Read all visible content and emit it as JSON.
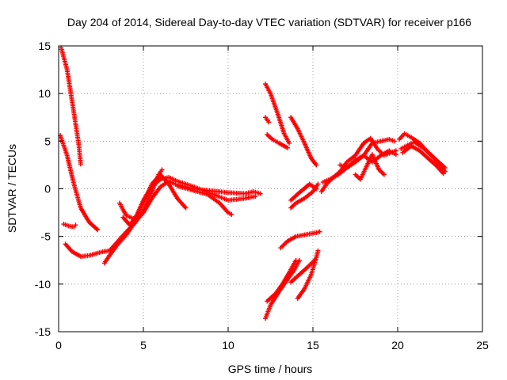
{
  "chart_data": {
    "type": "scatter",
    "title": "Day 204 of 2014, Sidereal Day-to-day VTEC variation (SDTVAR) for receiver p166",
    "xlabel": "GPS time / hours",
    "ylabel": "SDTVAR / TECUs",
    "xlim": [
      0,
      25
    ],
    "ylim": [
      -15,
      15
    ],
    "xticks": [
      0,
      5,
      10,
      15,
      20,
      25
    ],
    "yticks": [
      -15,
      -10,
      -5,
      0,
      5,
      10,
      15
    ],
    "grid": true,
    "marker": "plus",
    "color": "#ff0000",
    "segments": [
      [
        [
          0.15,
          14.8
        ],
        [
          0.5,
          12.5
        ],
        [
          0.9,
          8.0
        ],
        [
          1.2,
          4.5
        ],
        [
          1.3,
          2.6
        ]
      ],
      [
        [
          0.1,
          5.6
        ],
        [
          0.5,
          3.5
        ],
        [
          0.9,
          0.5
        ],
        [
          1.3,
          -2.0
        ],
        [
          1.8,
          -3.5
        ],
        [
          2.3,
          -4.3
        ]
      ],
      [
        [
          0.3,
          -3.7
        ],
        [
          0.6,
          -3.9
        ],
        [
          0.9,
          -4.0
        ],
        [
          1.0,
          -3.8
        ]
      ],
      [
        [
          0.4,
          -5.8
        ],
        [
          0.8,
          -6.6
        ],
        [
          1.3,
          -7.1
        ],
        [
          1.8,
          -7.0
        ],
        [
          2.2,
          -6.8
        ],
        [
          2.6,
          -6.6
        ],
        [
          3.0,
          -6.5
        ],
        [
          3.5,
          -5.5
        ],
        [
          4.0,
          -4.5
        ],
        [
          4.5,
          -3.6
        ],
        [
          5.0,
          -2.2
        ],
        [
          5.5,
          -0.3
        ],
        [
          5.9,
          1.5
        ],
        [
          6.1,
          2.0
        ]
      ],
      [
        [
          2.7,
          -7.8
        ],
        [
          3.0,
          -7.0
        ],
        [
          3.5,
          -5.8
        ],
        [
          4.0,
          -4.8
        ],
        [
          4.5,
          -3.5
        ],
        [
          5.0,
          -2.5
        ],
        [
          5.5,
          -1.0
        ],
        [
          6.0,
          0.2
        ],
        [
          6.5,
          0.8
        ],
        [
          7.0,
          0.4
        ],
        [
          8.0,
          0.0
        ],
        [
          9.0,
          -0.2
        ],
        [
          10.0,
          -0.4
        ],
        [
          11.0,
          -0.5
        ],
        [
          11.5,
          -0.3
        ],
        [
          11.9,
          -0.5
        ]
      ],
      [
        [
          3.6,
          -1.5
        ],
        [
          3.8,
          -2.2
        ],
        [
          4.0,
          -2.8
        ],
        [
          4.5,
          -3.2
        ],
        [
          5.0,
          -1.5
        ],
        [
          5.5,
          0.5
        ],
        [
          6.0,
          1.5
        ],
        [
          6.5,
          0.5
        ],
        [
          7.0,
          -1.0
        ],
        [
          7.5,
          -2.0
        ]
      ],
      [
        [
          3.8,
          -3.0
        ],
        [
          4.2,
          -3.8
        ],
        [
          4.6,
          -2.8
        ],
        [
          5.0,
          -1.2
        ],
        [
          5.5,
          0.3
        ],
        [
          6.0,
          1.0
        ],
        [
          6.5,
          1.2
        ],
        [
          7.0,
          0.8
        ],
        [
          8.0,
          0.2
        ],
        [
          9.0,
          -0.5
        ],
        [
          10.0,
          -1.2
        ],
        [
          11.0,
          -1.0
        ],
        [
          11.6,
          -0.8
        ]
      ],
      [
        [
          7.0,
          0.3
        ],
        [
          8.0,
          -0.2
        ],
        [
          8.8,
          -0.6
        ],
        [
          9.5,
          -1.5
        ],
        [
          10.0,
          -2.5
        ],
        [
          10.2,
          -2.7
        ]
      ],
      [
        [
          12.2,
          11.0
        ],
        [
          12.5,
          10.0
        ],
        [
          12.9,
          8.0
        ],
        [
          13.3,
          5.8
        ],
        [
          13.6,
          4.8
        ]
      ],
      [
        [
          12.2,
          7.5
        ],
        [
          12.4,
          7.0
        ]
      ],
      [
        [
          12.3,
          5.7
        ],
        [
          12.6,
          5.2
        ],
        [
          13.0,
          4.8
        ],
        [
          13.5,
          4.3
        ]
      ],
      [
        [
          13.7,
          7.5
        ],
        [
          14.1,
          6.3
        ],
        [
          14.5,
          4.8
        ],
        [
          14.9,
          3.2
        ],
        [
          15.2,
          2.5
        ]
      ],
      [
        [
          12.2,
          -13.6
        ],
        [
          12.5,
          -12.2
        ],
        [
          13.0,
          -10.8
        ],
        [
          13.5,
          -9.5
        ],
        [
          13.9,
          -8.5
        ],
        [
          14.2,
          -7.5
        ]
      ],
      [
        [
          12.3,
          -11.8
        ],
        [
          12.8,
          -11.0
        ],
        [
          13.2,
          -10.0
        ],
        [
          13.6,
          -8.8
        ],
        [
          14.0,
          -7.5
        ]
      ],
      [
        [
          14.1,
          -11.5
        ],
        [
          14.5,
          -10.5
        ],
        [
          14.9,
          -9.0
        ],
        [
          15.2,
          -7.2
        ],
        [
          15.3,
          -6.5
        ]
      ],
      [
        [
          13.7,
          -9.8
        ],
        [
          14.2,
          -9.0
        ],
        [
          14.7,
          -8.2
        ],
        [
          15.1,
          -7.5
        ]
      ],
      [
        [
          13.1,
          -6.2
        ],
        [
          13.5,
          -5.5
        ],
        [
          14.0,
          -5.0
        ],
        [
          14.6,
          -4.8
        ],
        [
          15.2,
          -4.6
        ],
        [
          15.4,
          -4.5
        ]
      ],
      [
        [
          13.7,
          -2.0
        ],
        [
          14.0,
          -1.5
        ],
        [
          14.5,
          -1.0
        ],
        [
          15.0,
          -0.3
        ],
        [
          15.3,
          0.5
        ]
      ],
      [
        [
          13.7,
          -1.2
        ],
        [
          14.2,
          -0.4
        ],
        [
          14.8,
          0.5
        ],
        [
          15.2,
          0.0
        ]
      ],
      [
        [
          15.5,
          -0.3
        ],
        [
          15.8,
          0.5
        ],
        [
          16.2,
          1.2
        ],
        [
          16.6,
          1.8
        ],
        [
          17.0,
          2.8
        ],
        [
          17.5,
          3.5
        ],
        [
          18.0,
          4.8
        ],
        [
          18.4,
          5.3
        ],
        [
          18.8,
          4.2
        ],
        [
          19.2,
          3.5
        ],
        [
          19.6,
          3.8
        ],
        [
          19.9,
          4.0
        ]
      ],
      [
        [
          15.6,
          0.7
        ],
        [
          16.0,
          1.0
        ],
        [
          16.5,
          1.5
        ],
        [
          17.0,
          2.2
        ],
        [
          17.5,
          3.0
        ],
        [
          18.0,
          3.5
        ],
        [
          18.5,
          2.8
        ],
        [
          19.0,
          3.5
        ],
        [
          19.5,
          4.0
        ],
        [
          19.9,
          3.6
        ]
      ],
      [
        [
          16.6,
          2.5
        ],
        [
          17.0,
          2.2
        ],
        [
          17.5,
          2.8
        ],
        [
          18.0,
          3.5
        ],
        [
          18.5,
          4.8
        ],
        [
          19.0,
          5.0
        ],
        [
          19.5,
          5.2
        ],
        [
          19.8,
          5.0
        ]
      ],
      [
        [
          17.5,
          1.5
        ],
        [
          17.8,
          1.0
        ],
        [
          18.2,
          2.5
        ],
        [
          18.5,
          3.6
        ],
        [
          18.9,
          2.0
        ],
        [
          19.2,
          1.5
        ]
      ],
      [
        [
          20.1,
          5.2
        ],
        [
          20.4,
          5.8
        ],
        [
          20.8,
          5.4
        ],
        [
          21.3,
          4.8
        ],
        [
          21.8,
          3.8
        ],
        [
          22.3,
          3.0
        ],
        [
          22.8,
          2.2
        ]
      ],
      [
        [
          20.2,
          4.2
        ],
        [
          20.6,
          4.6
        ],
        [
          21.0,
          4.9
        ],
        [
          21.5,
          4.3
        ],
        [
          22.0,
          3.5
        ],
        [
          22.5,
          2.5
        ],
        [
          22.8,
          1.8
        ]
      ],
      [
        [
          20.3,
          3.8
        ],
        [
          20.8,
          4.5
        ],
        [
          21.3,
          4.0
        ],
        [
          21.8,
          3.2
        ],
        [
          22.3,
          2.4
        ],
        [
          22.7,
          1.6
        ]
      ]
    ]
  }
}
